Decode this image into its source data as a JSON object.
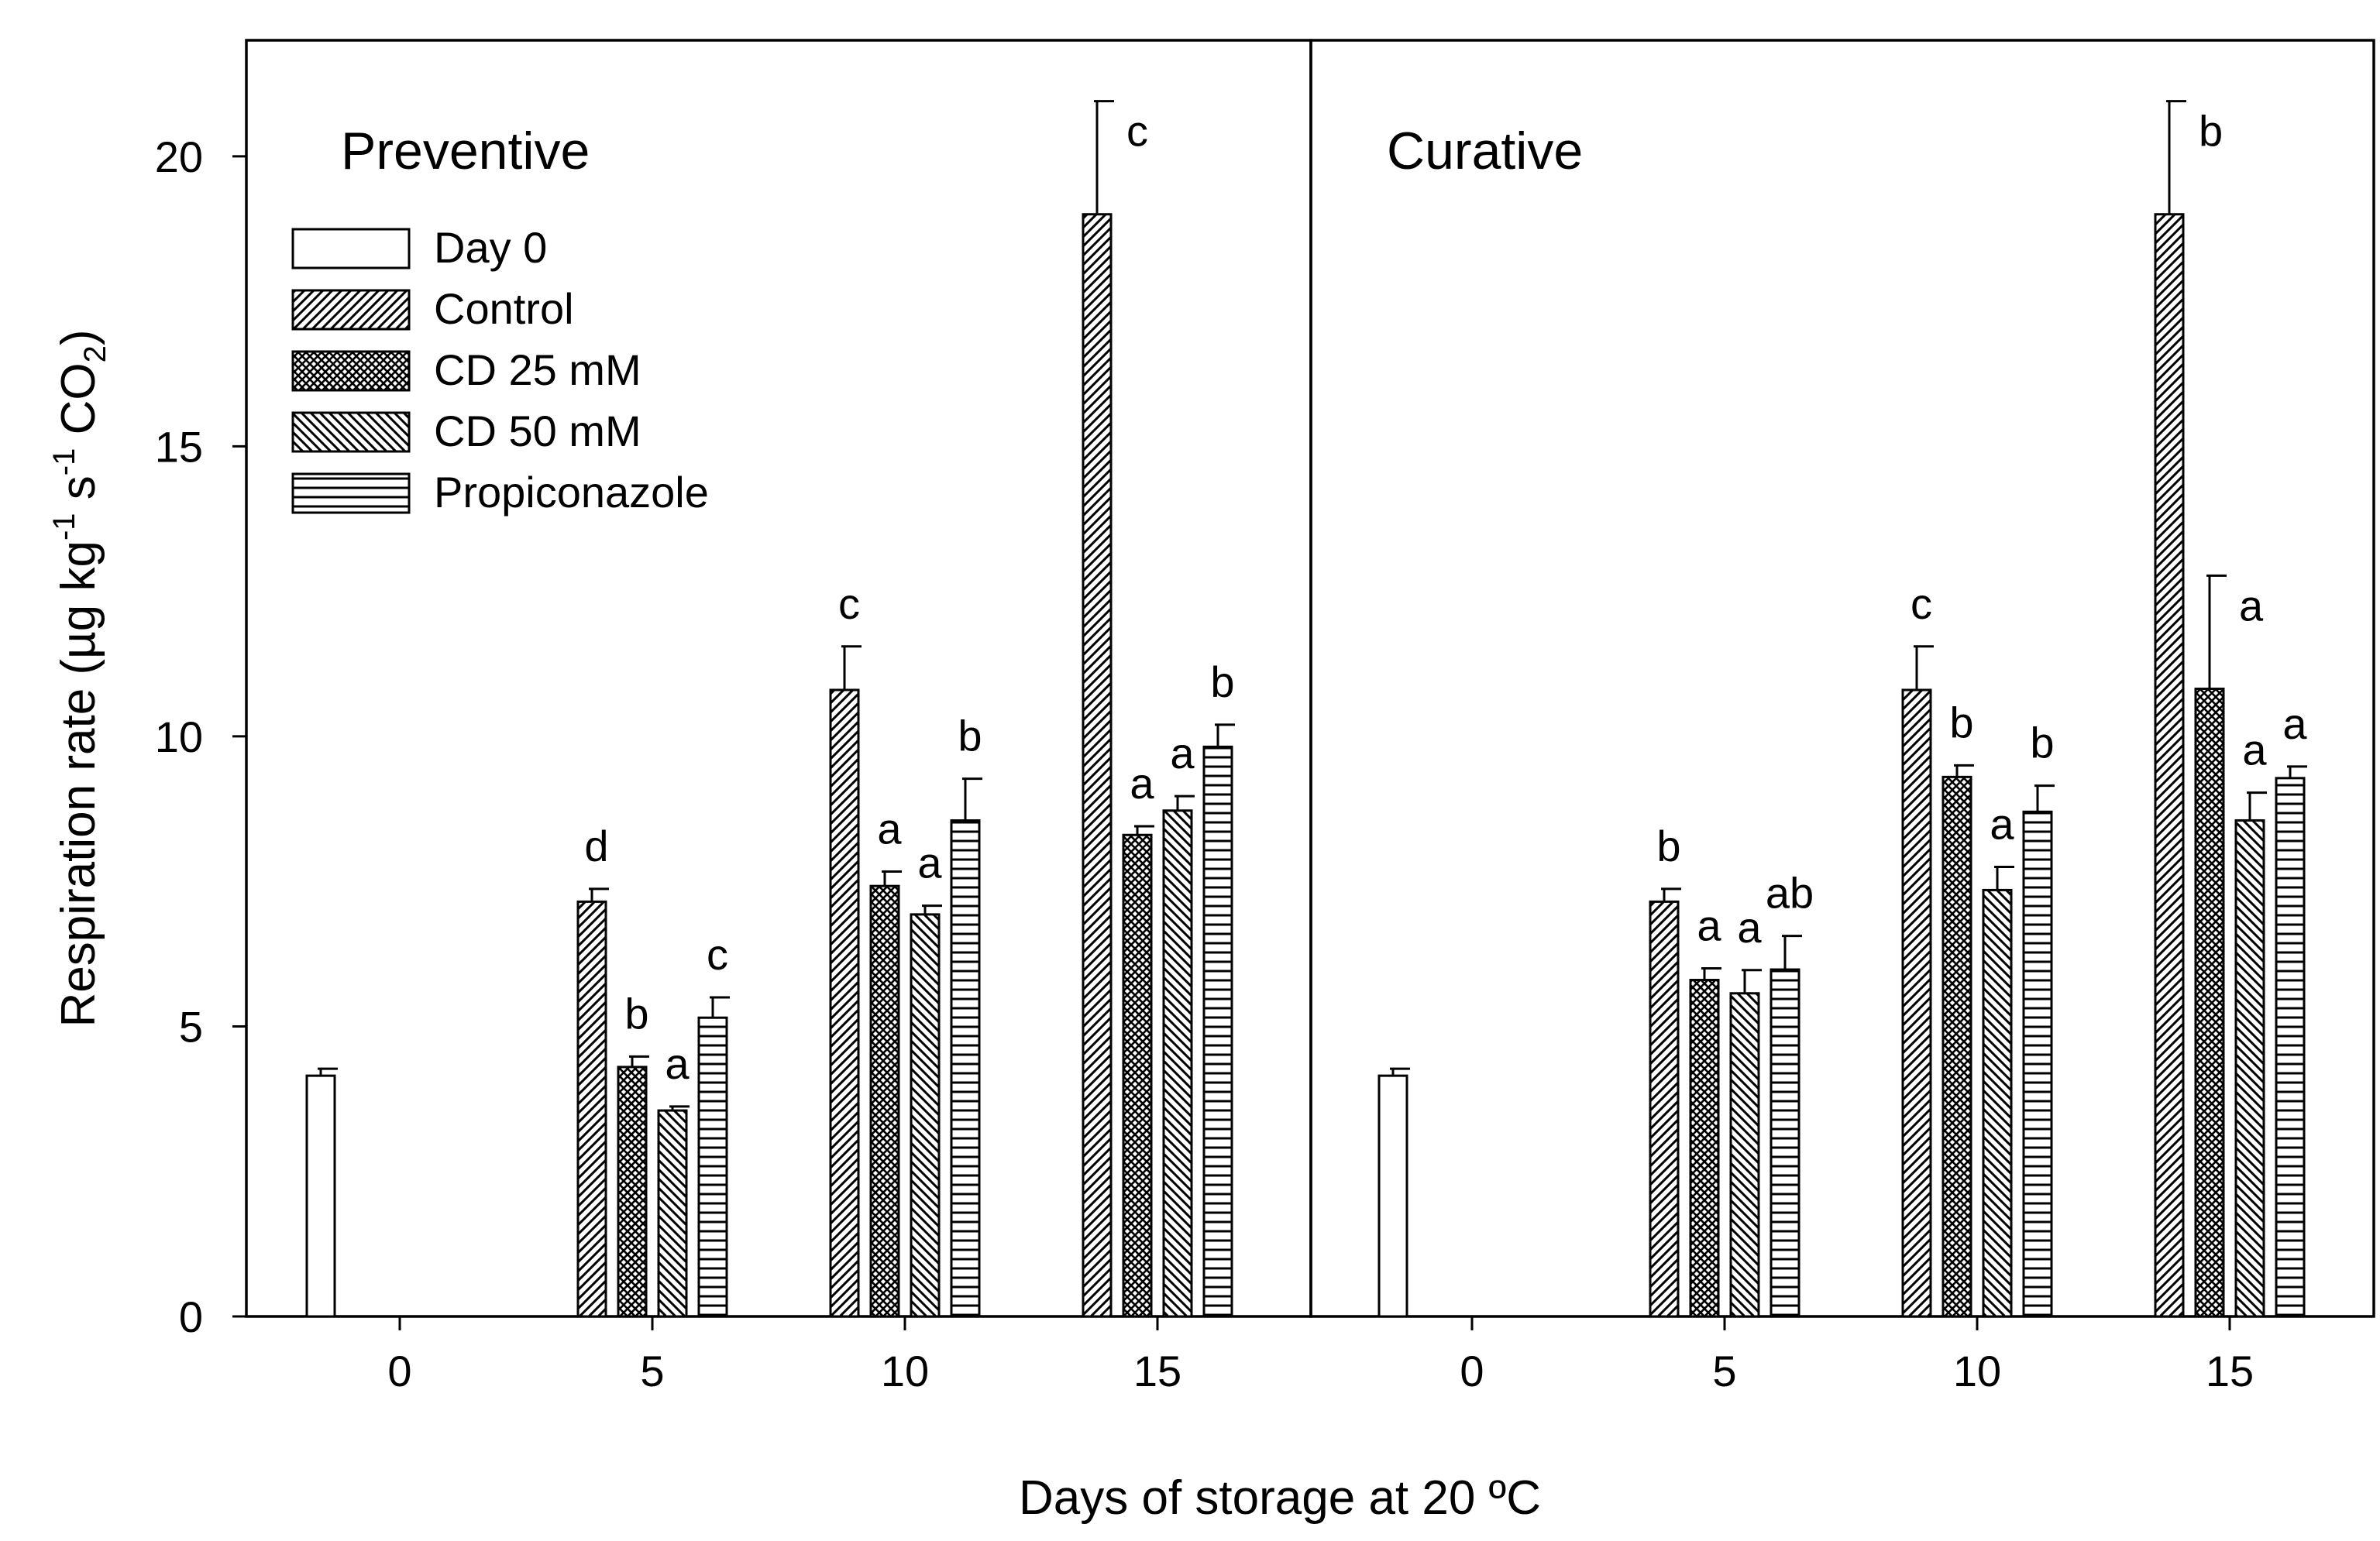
{
  "chart_data": {
    "type": "bar",
    "xlabel": "Days of storage at 20 ºC",
    "ylabel": {
      "parts": [
        {
          "text": "Respiration rate (µg kg"
        },
        {
          "text": "-1",
          "sup": true
        },
        {
          "text": " s"
        },
        {
          "text": "-1",
          "sup": true
        },
        {
          "text": " CO"
        },
        {
          "text": "2",
          "sub": true
        },
        {
          "text": ")"
        }
      ]
    },
    "ylim": [
      0,
      22
    ],
    "yticks": [
      0,
      5,
      10,
      15,
      20
    ],
    "xticks": [
      0,
      5,
      10,
      15
    ],
    "series": [
      {
        "name": "Day 0",
        "pattern": "none"
      },
      {
        "name": "Control",
        "pattern": "diag-right"
      },
      {
        "name": "CD 25 mM",
        "pattern": "crosshatch"
      },
      {
        "name": "CD 50 mM",
        "pattern": "diag-left"
      },
      {
        "name": "Propiconazole",
        "pattern": "horizontal"
      }
    ],
    "panels": [
      {
        "title": "Preventive",
        "groups": [
          {
            "day": 0,
            "bars": [
              {
                "series": "Day 0",
                "value": 4.15,
                "error": 0.12,
                "label": ""
              }
            ]
          },
          {
            "day": 5,
            "bars": [
              {
                "series": "Control",
                "value": 7.15,
                "error": 0.22,
                "label": "d"
              },
              {
                "series": "CD 25 mM",
                "value": 4.3,
                "error": 0.18,
                "label": "b"
              },
              {
                "series": "CD 50 mM",
                "value": 3.55,
                "error": 0.07,
                "label": "a"
              },
              {
                "series": "Propiconazole",
                "value": 5.15,
                "error": 0.35,
                "label": "c"
              }
            ]
          },
          {
            "day": 10,
            "bars": [
              {
                "series": "Control",
                "value": 10.8,
                "error": 0.75,
                "label": "c"
              },
              {
                "series": "CD 25 mM",
                "value": 7.42,
                "error": 0.25,
                "label": "a"
              },
              {
                "series": "CD 50 mM",
                "value": 6.93,
                "error": 0.15,
                "label": "a"
              },
              {
                "series": "Propiconazole",
                "value": 8.55,
                "error": 0.72,
                "label": "b"
              }
            ]
          },
          {
            "day": 15,
            "bars": [
              {
                "series": "Control",
                "value": 19.0,
                "error": 1.95,
                "label": "c"
              },
              {
                "series": "CD 25 mM",
                "value": 8.3,
                "error": 0.15,
                "label": "a"
              },
              {
                "series": "CD 50 mM",
                "value": 8.72,
                "error": 0.25,
                "label": "a"
              },
              {
                "series": "Propiconazole",
                "value": 9.82,
                "error": 0.38,
                "label": "b"
              }
            ]
          }
        ]
      },
      {
        "title": "Curative",
        "groups": [
          {
            "day": 0,
            "bars": [
              {
                "series": "Day 0",
                "value": 4.15,
                "error": 0.12,
                "label": ""
              }
            ]
          },
          {
            "day": 5,
            "bars": [
              {
                "series": "Control",
                "value": 7.15,
                "error": 0.22,
                "label": "b"
              },
              {
                "series": "CD 25 mM",
                "value": 5.8,
                "error": 0.2,
                "label": "a"
              },
              {
                "series": "CD 50 mM",
                "value": 5.57,
                "error": 0.4,
                "label": "a"
              },
              {
                "series": "Propiconazole",
                "value": 5.98,
                "error": 0.58,
                "label": "ab"
              }
            ]
          },
          {
            "day": 10,
            "bars": [
              {
                "series": "Control",
                "value": 10.8,
                "error": 0.75,
                "label": "c"
              },
              {
                "series": "CD 25 mM",
                "value": 9.3,
                "error": 0.2,
                "label": "b"
              },
              {
                "series": "CD 50 mM",
                "value": 7.35,
                "error": 0.4,
                "label": "a"
              },
              {
                "series": "Propiconazole",
                "value": 8.7,
                "error": 0.45,
                "label": "b"
              }
            ]
          },
          {
            "day": 15,
            "bars": [
              {
                "series": "Control",
                "value": 19.0,
                "error": 1.95,
                "label": "b"
              },
              {
                "series": "CD 25 mM",
                "value": 10.82,
                "error": 1.95,
                "label": "a"
              },
              {
                "series": "CD 50 mM",
                "value": 8.55,
                "error": 0.48,
                "label": "a"
              },
              {
                "series": "Propiconazole",
                "value": 9.28,
                "error": 0.2,
                "label": "a"
              }
            ]
          }
        ]
      }
    ]
  }
}
